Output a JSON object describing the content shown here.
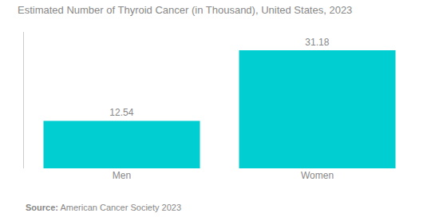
{
  "chart_data": {
    "type": "bar",
    "title": "Estimated Number of Thyroid Cancer (in Thousand), United States, 2023",
    "categories": [
      "Men",
      "Women"
    ],
    "values": [
      12.54,
      31.18
    ],
    "color": "#00CED1",
    "ylim": [
      0,
      36
    ],
    "grid": false,
    "data_labels": true,
    "tick_labels": "x",
    "annotations": [
      "Source:",
      "American Cancer Society 2023"
    ]
  }
}
